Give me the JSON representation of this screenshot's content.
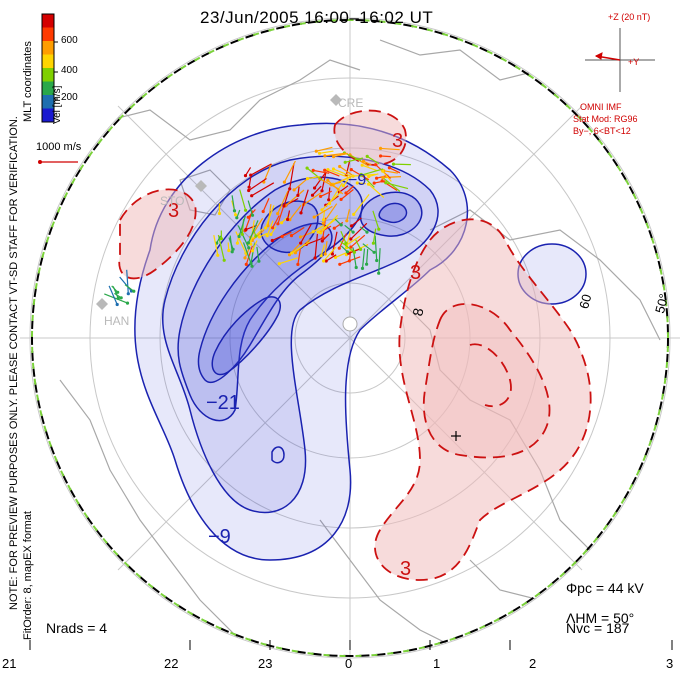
{
  "header": {
    "title": "23/Jun/2005 16:00–16:02 UT"
  },
  "colorbar": {
    "label": "Vel [m/s]",
    "ticks": [
      "600",
      "400",
      "200"
    ],
    "colors": [
      "#d40000",
      "#ff3a00",
      "#ff9d00",
      "#ffd500",
      "#7fd000",
      "#2aa84a",
      "#1e6fb0",
      "#1a1ad0"
    ]
  },
  "scale": {
    "label": "1000 m/s"
  },
  "imf": {
    "z_label": "+Z (20 nT)",
    "y_label": "+Y",
    "source": "OMNI IMF",
    "model_line1": "Stat Mod: RG96",
    "model_line2": "By−, 6<BT<12"
  },
  "side_notes": {
    "left_top": "MLT coordinates",
    "left_main": "NOTE: FOR PREVIEW PURPOSES ONLY. PLEASE CONTACT VT-SD STAFF FOR VERIFICATION.",
    "left_bottom": "FitOrder: 8, mapEX format"
  },
  "stats": {
    "phi_pc": "Φpc = 44 kV",
    "lambda_hm": "ΛHM = 50°",
    "n_vc": "Nvc = 187",
    "n_rads": "Nrads = 4"
  },
  "mlt_labels": [
    "21",
    "22",
    "23",
    "0",
    "1",
    "2",
    "3"
  ],
  "lat_labels": [
    "60",
    "50°"
  ],
  "contour_labels": [
    "−21",
    "−9",
    "3",
    "3",
    "3",
    "3",
    "−9",
    "8"
  ],
  "stations": [
    "CRE",
    "STO",
    "HAN"
  ],
  "colors": {
    "negative_line": "#1a22b0",
    "positive_line": "#cc1111",
    "negative_fill": "#3a44d8",
    "positive_fill": "#f0b8b8",
    "boundary": "#7bd23a",
    "coast": "#a8a8a8"
  }
}
